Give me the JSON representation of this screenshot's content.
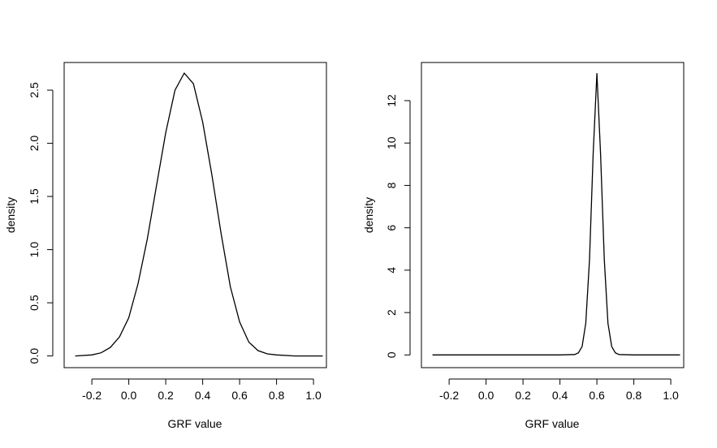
{
  "chart_data": [
    {
      "type": "line",
      "title": "",
      "xlabel": "GRF value",
      "ylabel": "density",
      "xlim": [
        -0.35,
        1.07
      ],
      "ylim": [
        -0.11,
        2.76
      ],
      "xticks": [
        -0.2,
        0.0,
        0.2,
        0.4,
        0.6,
        0.8,
        1.0
      ],
      "xtick_labels": [
        "-0.2",
        "0.0",
        "0.2",
        "0.4",
        "0.6",
        "0.8",
        "1.0"
      ],
      "yticks": [
        0.0,
        0.5,
        1.0,
        1.5,
        2.0,
        2.5
      ],
      "ytick_labels": [
        "0.0",
        "0.5",
        "1.0",
        "1.5",
        "2.0",
        "2.5"
      ],
      "grid": false,
      "series": [
        {
          "color": "#000000",
          "x": [
            -0.29,
            -0.2,
            -0.15,
            -0.1,
            -0.05,
            0.0,
            0.05,
            0.1,
            0.15,
            0.2,
            0.25,
            0.3,
            0.35,
            0.4,
            0.45,
            0.5,
            0.55,
            0.6,
            0.65,
            0.7,
            0.75,
            0.8,
            0.9,
            1.05
          ],
          "y": [
            0.0,
            0.01,
            0.03,
            0.08,
            0.18,
            0.36,
            0.68,
            1.1,
            1.6,
            2.1,
            2.5,
            2.66,
            2.56,
            2.2,
            1.7,
            1.15,
            0.65,
            0.32,
            0.13,
            0.05,
            0.02,
            0.01,
            0.0,
            0.0
          ]
        }
      ]
    },
    {
      "type": "line",
      "title": "",
      "xlabel": "GRF value",
      "ylabel": "density",
      "xlim": [
        -0.35,
        1.07
      ],
      "ylim": [
        -0.6,
        13.8
      ],
      "xticks": [
        -0.2,
        0.0,
        0.2,
        0.4,
        0.6,
        0.8,
        1.0
      ],
      "xtick_labels": [
        "-0.2",
        "0.0",
        "0.2",
        "0.4",
        "0.6",
        "0.8",
        "1.0"
      ],
      "yticks": [
        0,
        2,
        4,
        6,
        8,
        10,
        12
      ],
      "ytick_labels": [
        "0",
        "2",
        "4",
        "6",
        "8",
        "10",
        "12"
      ],
      "grid": false,
      "series": [
        {
          "color": "#000000",
          "x": [
            -0.29,
            0.4,
            0.48,
            0.5,
            0.52,
            0.54,
            0.56,
            0.58,
            0.6,
            0.62,
            0.64,
            0.66,
            0.68,
            0.7,
            0.72,
            0.8,
            1.05
          ],
          "y": [
            0,
            0,
            0.02,
            0.1,
            0.4,
            1.5,
            4.5,
            9.5,
            13.3,
            9.5,
            4.5,
            1.5,
            0.4,
            0.1,
            0.02,
            0,
            0
          ]
        }
      ]
    }
  ]
}
